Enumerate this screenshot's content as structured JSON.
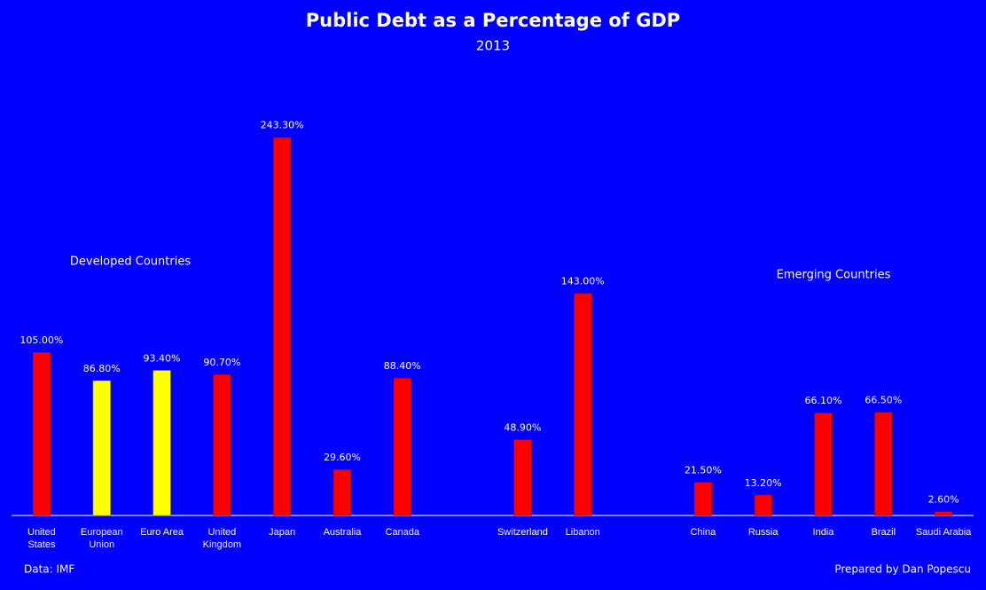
{
  "chart_data": {
    "type": "bar",
    "title": "Public Debt as a Percentage of GDP",
    "subtitle": "2013",
    "categories": [
      "United States",
      "European Union",
      "Euro Area",
      "United Kingdom",
      "Japan",
      "Australia",
      "Canada",
      null,
      "Switzerland",
      "Libanon",
      null,
      "China",
      "Russia",
      "India",
      "Brazil",
      "Saudi Arabia"
    ],
    "values": [
      105,
      86.8,
      93.4,
      90.7,
      243.3,
      29.6,
      88.4,
      null,
      48.9,
      143,
      null,
      21.5,
      13.2,
      66.1,
      66.5,
      2.6
    ],
    "value_labels": [
      "105.00%",
      "86.80%",
      "93.40%",
      "90.70%",
      "243.30%",
      "29.60%",
      "88.40%",
      null,
      "48.90%",
      "143.00%",
      null,
      "21.50%",
      "13.20%",
      "66.10%",
      "66.50%",
      "2.60%"
    ],
    "colors": [
      "#ff0000",
      "#ffff00",
      "#ffff00",
      "#ff0000",
      "#ff0000",
      "#ff0000",
      "#ff0000",
      null,
      "#ff0000",
      "#ff0000",
      null,
      "#ff0000",
      "#ff0000",
      "#ff0000",
      "#ff0000",
      "#ff0000"
    ],
    "ylim": [
      0,
      250
    ],
    "annotations": [
      "Developed Countries",
      "Emerging Countries"
    ],
    "source": "Data: IMF",
    "credit": "Prepared by Dan Popescu"
  }
}
